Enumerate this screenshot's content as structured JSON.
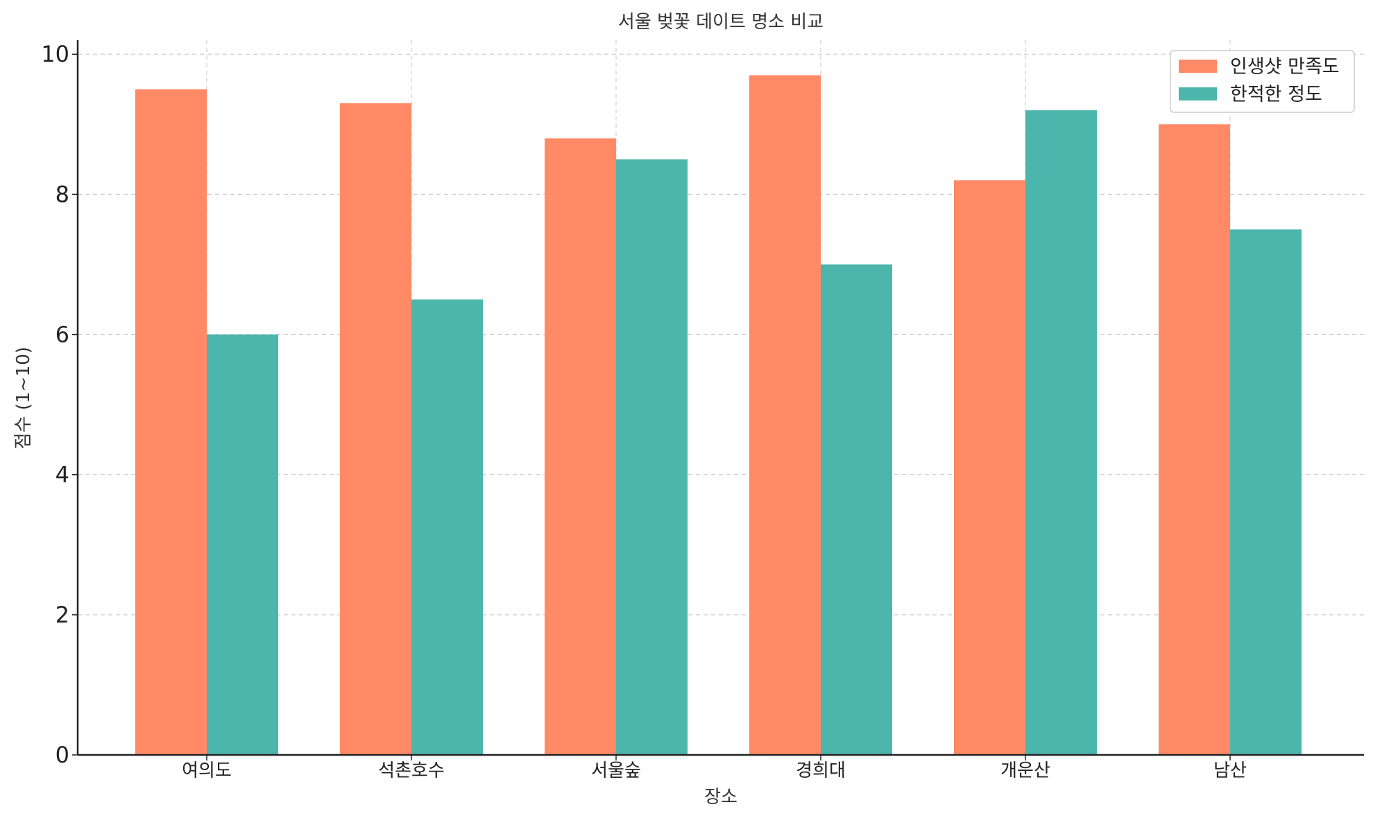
{
  "chart_data": {
    "type": "bar",
    "title": "서울 벚꽃 데이트 명소 비교",
    "xlabel": "장소",
    "ylabel": "점수 (1~10)",
    "categories": [
      "여의도",
      "석촌호수",
      "서울숲",
      "경희대",
      "개운산",
      "남산"
    ],
    "series": [
      {
        "name": "인생샷 만족도",
        "color": "#FF8A65",
        "values": [
          9.5,
          9.3,
          8.8,
          9.7,
          8.2,
          9.0
        ]
      },
      {
        "name": "한적한 정도",
        "color": "#4DB6AC",
        "values": [
          6.0,
          6.5,
          8.5,
          7.0,
          9.2,
          7.5
        ]
      }
    ],
    "ylim": [
      0,
      10.2
    ],
    "yticks": [
      0,
      2,
      4,
      6,
      8,
      10
    ],
    "grid": true,
    "legend_position": "top-right"
  }
}
